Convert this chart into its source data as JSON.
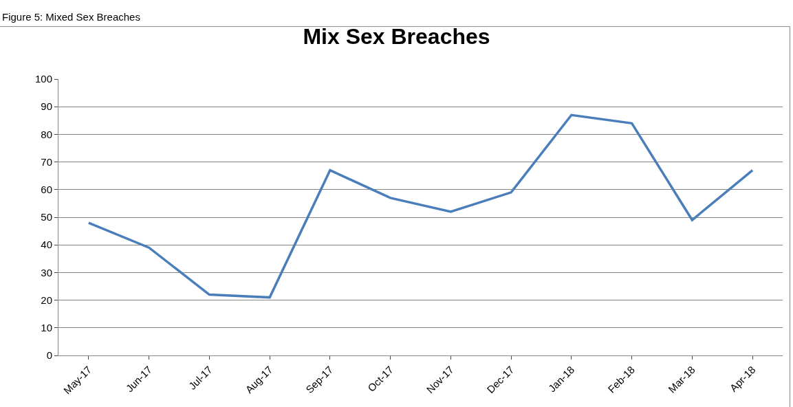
{
  "chart_data": {
    "type": "line",
    "title": "Mix Sex Breaches",
    "annotations": [
      "Figure 5: Mixed Sex Breaches"
    ],
    "categories": [
      "May-17",
      "Jun-17",
      "Jul-17",
      "Aug-17",
      "Sep-17",
      "Oct-17",
      "Nov-17",
      "Dec-17",
      "Jan-18",
      "Feb-18",
      "Mar-18",
      "Apr-18"
    ],
    "series": [
      {
        "color": "#4a7ebb",
        "values": [
          48,
          39,
          22,
          21,
          67,
          57,
          52,
          59,
          87,
          84,
          49,
          67
        ]
      }
    ],
    "ylim": [
      0,
      100
    ],
    "yticks": [
      0,
      10,
      20,
      30,
      40,
      50,
      60,
      70,
      80,
      90,
      100
    ],
    "grid": "y",
    "legend": false,
    "marker": "none",
    "line_style": "solid"
  }
}
